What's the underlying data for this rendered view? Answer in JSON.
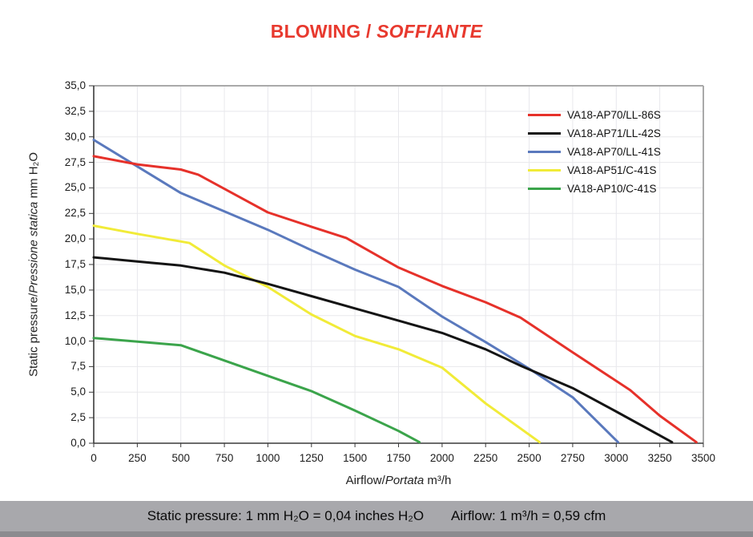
{
  "title": {
    "main": "BLOWING /",
    "italic": " SOFFIANTE",
    "color": "#e8392e"
  },
  "chart_data": {
    "type": "line",
    "title": "BLOWING / SOFFIANTE",
    "xlabel": {
      "normal": "Airflow/",
      "italic": "Portata",
      "unit": " m³/h"
    },
    "ylabel": {
      "normal": "Static pressure/",
      "italic": "Pressione statica",
      "unit": " mm H₂O"
    },
    "xlim": [
      0,
      3500
    ],
    "ylim": [
      0,
      35
    ],
    "x_tick_step": 250,
    "y_tick_step": 2.5,
    "grid": true,
    "legend_position": "top-right-inside",
    "xticks": [
      "0",
      "250",
      "500",
      "750",
      "1000",
      "1250",
      "1500",
      "1750",
      "2000",
      "2250",
      "2500",
      "2750",
      "3000",
      "3250",
      "3500"
    ],
    "yticks": [
      "0,0",
      "2,5",
      "5,0",
      "7,5",
      "10,0",
      "12,5",
      "15,0",
      "17,5",
      "20,0",
      "22,5",
      "25,0",
      "27,5",
      "30,0",
      "32,5",
      "35,0"
    ],
    "series": [
      {
        "name": "VA18-AP70/LL-86S",
        "color": "#e6312a",
        "points": [
          [
            0,
            28.1
          ],
          [
            250,
            27.3
          ],
          [
            500,
            26.8
          ],
          [
            600,
            26.3
          ],
          [
            1000,
            22.6
          ],
          [
            1250,
            21.2
          ],
          [
            1450,
            20.1
          ],
          [
            1750,
            17.2
          ],
          [
            2000,
            15.4
          ],
          [
            2250,
            13.8
          ],
          [
            2450,
            12.3
          ],
          [
            2750,
            8.9
          ],
          [
            3080,
            5.2
          ],
          [
            3250,
            2.7
          ],
          [
            3460,
            0.1
          ]
        ]
      },
      {
        "name": "VA18-AP71/LL-42S",
        "color": "#141414",
        "points": [
          [
            0,
            18.2
          ],
          [
            250,
            17.8
          ],
          [
            500,
            17.4
          ],
          [
            750,
            16.7
          ],
          [
            1000,
            15.6
          ],
          [
            1250,
            14.4
          ],
          [
            1500,
            13.2
          ],
          [
            1750,
            12.0
          ],
          [
            2000,
            10.8
          ],
          [
            2250,
            9.2
          ],
          [
            2450,
            7.6
          ],
          [
            2750,
            5.4
          ],
          [
            3000,
            3.1
          ],
          [
            3320,
            0.1
          ]
        ]
      },
      {
        "name": "VA18-AP70/LL-41S",
        "color": "#5a79bd",
        "points": [
          [
            0,
            29.7
          ],
          [
            250,
            27.1
          ],
          [
            500,
            24.5
          ],
          [
            750,
            22.7
          ],
          [
            1000,
            20.9
          ],
          [
            1250,
            18.9
          ],
          [
            1500,
            17.0
          ],
          [
            1750,
            15.3
          ],
          [
            2000,
            12.4
          ],
          [
            2250,
            9.9
          ],
          [
            2500,
            7.3
          ],
          [
            2750,
            4.5
          ],
          [
            3010,
            0.1
          ]
        ]
      },
      {
        "name": "VA18-AP51/C-41S",
        "color": "#f1eb38",
        "points": [
          [
            0,
            21.3
          ],
          [
            250,
            20.5
          ],
          [
            550,
            19.6
          ],
          [
            750,
            17.4
          ],
          [
            1000,
            15.3
          ],
          [
            1250,
            12.6
          ],
          [
            1500,
            10.5
          ],
          [
            1750,
            9.2
          ],
          [
            2000,
            7.4
          ],
          [
            2250,
            3.9
          ],
          [
            2560,
            0.1
          ]
        ]
      },
      {
        "name": "VA18-AP10/C-41S",
        "color": "#3ba44b",
        "points": [
          [
            0,
            10.3
          ],
          [
            500,
            9.6
          ],
          [
            750,
            8.1
          ],
          [
            1000,
            6.6
          ],
          [
            1250,
            5.1
          ],
          [
            1500,
            3.2
          ],
          [
            1750,
            1.2
          ],
          [
            1870,
            0.1
          ]
        ]
      }
    ]
  },
  "footer": {
    "pressure": "Static pressure: 1 mm H₂O = 0,04 inches H₂O",
    "airflow": "Airflow: 1 m³/h = 0,59 cfm",
    "bar_color": "#a8a8ac",
    "strip_color": "#8b8b8f"
  },
  "colors": {
    "grid": "#e8e8ec",
    "plot_border": "#a9a9a9",
    "axis": "#3a3a3a",
    "text": "#1c1c1c"
  }
}
